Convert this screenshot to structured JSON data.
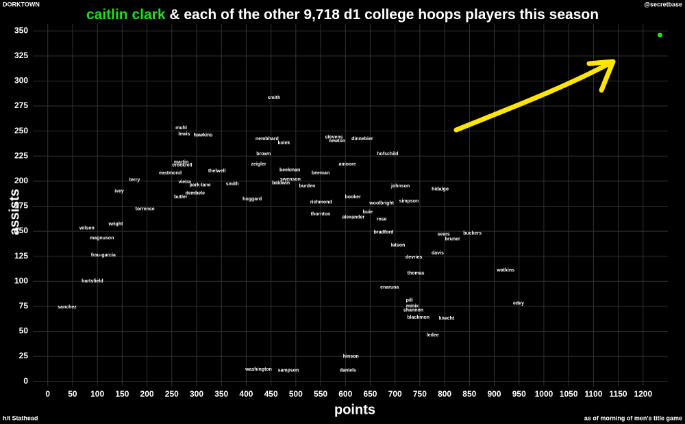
{
  "chart_data": {
    "type": "scatter",
    "title_highlight": "caitlin clark",
    "title": "& each of the other 9,718 d1 college hoops players this season",
    "brand": "DORKTOWN",
    "handle": "@secretbase",
    "source": "h/t Stathead",
    "note": "as of morning of men's title game",
    "xlabel": "points",
    "ylabel": "assists",
    "xlim": [
      -30,
      1250
    ],
    "ylim": [
      -5,
      357
    ],
    "xticks": [
      0,
      50,
      100,
      150,
      200,
      250,
      300,
      350,
      400,
      450,
      500,
      550,
      600,
      650,
      700,
      750,
      800,
      850,
      900,
      950,
      1000,
      1050,
      1100,
      1150,
      1200
    ],
    "yticks": [
      0,
      25,
      50,
      75,
      100,
      125,
      150,
      175,
      200,
      225,
      250,
      275,
      300,
      325,
      350
    ],
    "grid": true,
    "highlight": {
      "x": 1234,
      "value": 346,
      "color": "#22dd22"
    },
    "players": {
      "color": "#ffffff",
      "labels": [
        "smith",
        "muhl",
        "lewis",
        "hawkins",
        "nembhard",
        "stevens",
        "newton",
        "dinnebier",
        "kolek",
        "brown",
        "hofschild",
        "amoore",
        "martin",
        "crockrell",
        "zeigler",
        "thelwell",
        "beekman",
        "eastmond",
        "beeman",
        "terry",
        "vieira",
        "park-lane",
        "smith",
        "swenson",
        "baldwin",
        "johnson",
        "hidalgo",
        "burden",
        "ivey",
        "dembele",
        "booker",
        "butler",
        "simpson",
        "woolbright",
        "hoggard",
        "richmond",
        "torrence",
        "wilson",
        "wright",
        "buie",
        "alexander",
        "rose",
        "thornton",
        "buckers",
        "sears",
        "bruner",
        "magnuson",
        "bradford",
        "latson",
        "davis",
        "devries",
        "thomas",
        "watkins",
        "edey",
        "pili",
        "minix",
        "shannon",
        "blackmon",
        "knecht",
        "ledee",
        "hinson",
        "daniels",
        "hartsfield",
        "sanchez",
        "frau-garcia",
        "enaruna",
        "sampson",
        "washington"
      ],
      "x": [
        456,
        269,
        275,
        313,
        442,
        577,
        583,
        634,
        476,
        435,
        685,
        604,
        269,
        271,
        425,
        341,
        488,
        247,
        550,
        175,
        276,
        307,
        372,
        489,
        470,
        711,
        791,
        523,
        144,
        297,
        615,
        268,
        728,
        673,
        412,
        551,
        196,
        79,
        137,
        645,
        616,
        673,
        550,
        856,
        798,
        816,
        109,
        677,
        706,
        786,
        738,
        742,
        923,
        949,
        729,
        735,
        737,
        747,
        804,
        776,
        611,
        605,
        90,
        39,
        112,
        689,
        485,
        425
      ],
      "values": [
        283,
        253,
        247,
        246,
        242,
        244,
        240,
        242,
        238,
        227,
        227,
        217,
        219,
        216,
        217,
        210,
        211,
        208,
        208,
        201,
        199,
        196,
        197,
        202,
        198,
        195,
        192,
        195,
        190,
        188,
        184,
        184,
        180,
        178,
        182,
        179,
        172,
        153,
        157,
        169,
        164,
        162,
        167,
        148,
        147,
        142,
        143,
        149,
        136,
        128,
        124,
        108,
        111,
        78,
        81,
        75,
        71,
        64,
        63,
        46,
        25,
        11,
        100,
        74,
        126,
        94,
        11,
        12
      ]
    }
  }
}
